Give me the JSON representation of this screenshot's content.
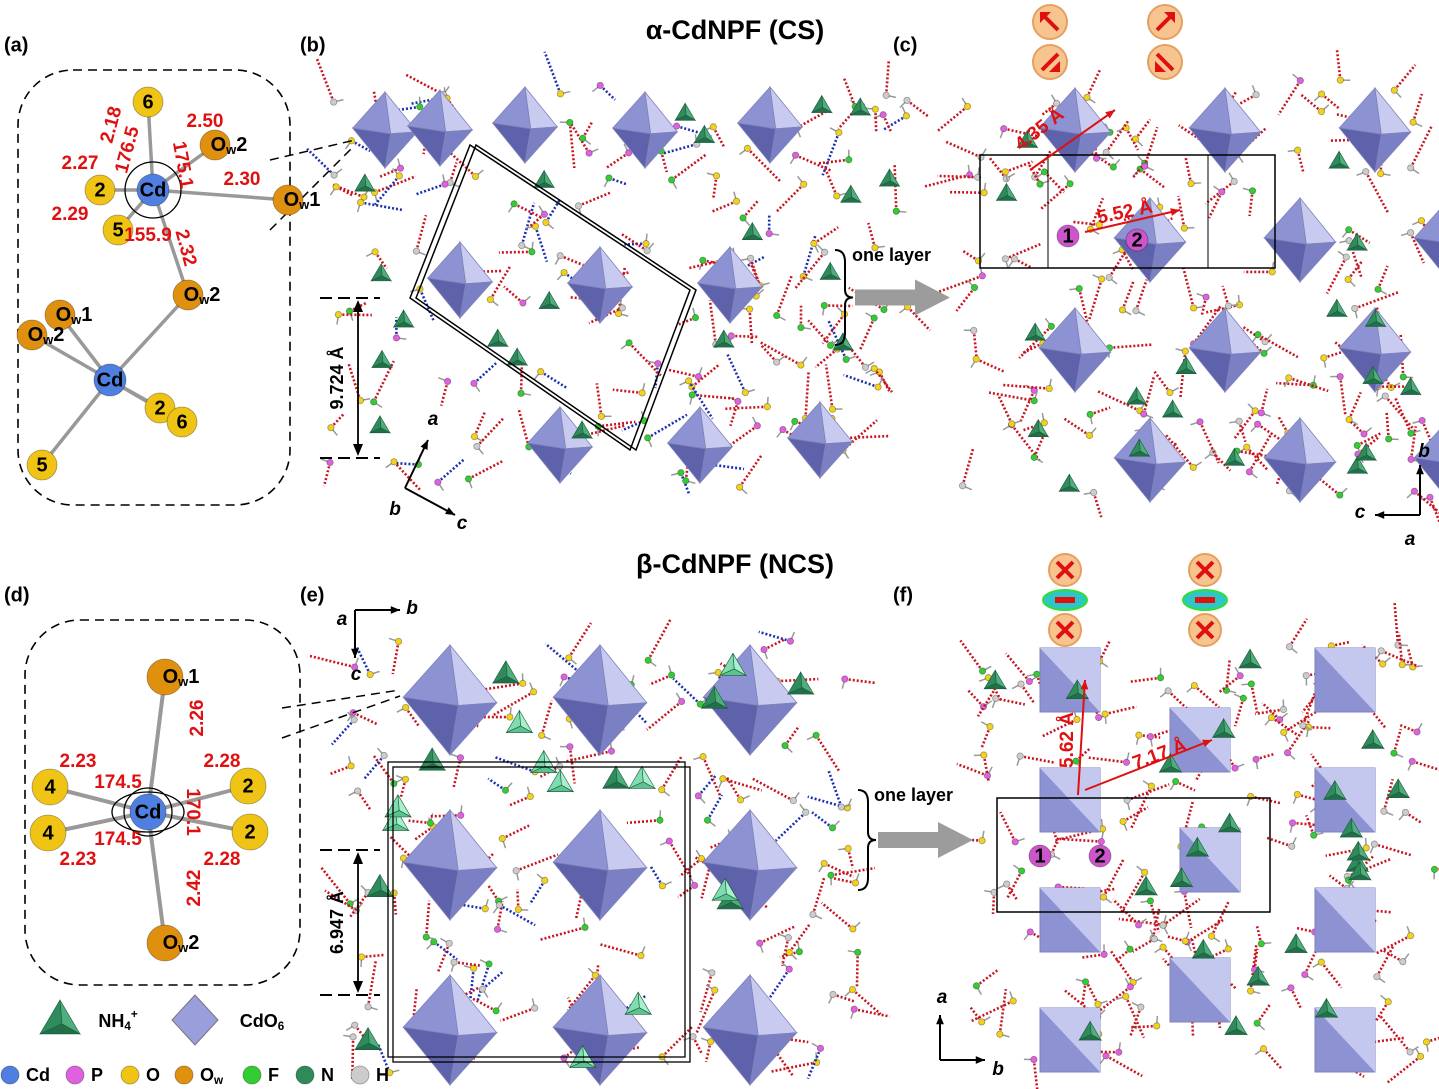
{
  "titles": {
    "alpha": "α-CdNPF (CS)",
    "beta": "β-CdNPF (NCS)"
  },
  "panel_labels": [
    "(a)",
    "(b)",
    "(c)",
    "(d)",
    "(e)",
    "(f)"
  ],
  "panel_a": {
    "atoms": [
      "6",
      {
        "el": "O",
        "sub": "w",
        "site": "2"
      },
      "Cd",
      {
        "el": "O",
        "sub": "w",
        "site": "1"
      },
      "2",
      "5",
      {
        "el": "O",
        "sub": "w",
        "site": "2"
      },
      {
        "el": "O",
        "sub": "w",
        "site": "1"
      },
      {
        "el": "O",
        "sub": "w",
        "site": "2"
      },
      "Cd",
      "2",
      "6",
      "5"
    ],
    "bonds": [
      "2.18",
      "2.50",
      "2.27",
      "2.30",
      "2.29",
      "2.32"
    ],
    "angles": [
      "176.5",
      "175.1",
      "155.9"
    ]
  },
  "panel_b": {
    "distance": "9.724 Å",
    "axes": [
      "a",
      "b",
      "c"
    ],
    "layer": "one layer"
  },
  "panel_c": {
    "distances": [
      "4.35 Å",
      "5.52 Å"
    ],
    "sites": [
      "1",
      "2"
    ],
    "axes": [
      "b",
      "c",
      "a"
    ]
  },
  "panel_d": {
    "atoms": [
      {
        "el": "O",
        "sub": "w",
        "site": "1"
      },
      "4",
      "4",
      "Cd",
      "2",
      "2",
      {
        "el": "O",
        "sub": "w",
        "site": "2"
      }
    ],
    "bonds": [
      "2.26",
      "2.23",
      "2.28",
      "2.23",
      "2.28",
      "2.42"
    ],
    "angles": [
      "174.5",
      "170.1",
      "174.5"
    ]
  },
  "panel_e": {
    "distance": "6.947 Å",
    "axes": [
      "a",
      "b",
      "c"
    ],
    "layer": "one layer"
  },
  "panel_f": {
    "distances": [
      "5.62 Å",
      "7.17 Å"
    ],
    "sites": [
      "1",
      "2"
    ],
    "axes": [
      "a",
      "b"
    ]
  },
  "legend": {
    "polyhedra": [
      {
        "el": "NH",
        "sub": "4",
        "sup": "+"
      },
      {
        "el": "CdO",
        "sub": "6"
      }
    ],
    "atoms": [
      "Cd",
      "P",
      "O",
      {
        "el": "O",
        "sub": "w"
      },
      "F",
      "N",
      "H"
    ]
  }
}
